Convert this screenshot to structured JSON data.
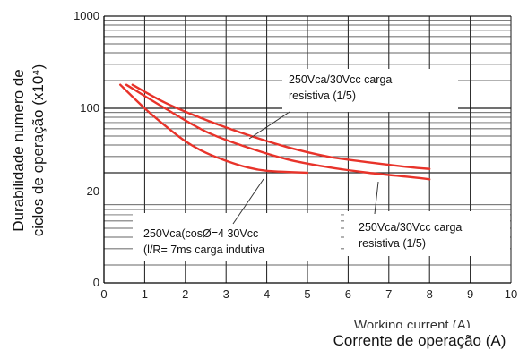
{
  "chart_data": {
    "type": "line",
    "xlabel": "Corrente de operação (A)",
    "ylabel_line1": "Durabilidade numero de",
    "ylabel_line2": "ciclos de operação (x10⁴)",
    "xlim": [
      0,
      10
    ],
    "x_ticks": [
      "0",
      "1",
      "2",
      "3",
      "4",
      "5",
      "6",
      "7",
      "8",
      "9",
      "10"
    ],
    "y_ticks": [
      "0",
      "20",
      "100",
      "1000"
    ],
    "cropped_text": "Working current (A)",
    "series_color": "#e8332a",
    "series": [
      {
        "x": [
          0.7,
          1.5,
          2.5,
          3.5,
          4.5,
          5.5,
          6.5,
          7.5,
          8.0
        ],
        "y": [
          180,
          115,
          75,
          52,
          38,
          30,
          26,
          23,
          22
        ]
      },
      {
        "x": [
          0.55,
          1.5,
          2.5,
          3.5,
          4.5,
          5.5,
          6.5,
          7.5,
          8.0
        ],
        "y": [
          180,
          100,
          56,
          38,
          28,
          23,
          20,
          18,
          17
        ]
      },
      {
        "x": [
          0.4,
          1.0,
          1.5,
          2.0,
          2.5,
          3.0,
          3.5,
          4.0,
          5.0
        ],
        "y": [
          180,
          100,
          65,
          44,
          33,
          27,
          23,
          21,
          20
        ]
      }
    ],
    "annotations": [
      {
        "lines": [
          "250Vca/30Vcc carga",
          "resistiva (1/5)"
        ]
      },
      {
        "lines": [
          "250Vca/30Vcc carga",
          "resistiva (1/5)"
        ]
      },
      {
        "lines": [
          "250Vca(cosØ=4 30Vcc",
          "(l/R= 7ms carga indutiva"
        ]
      }
    ]
  }
}
